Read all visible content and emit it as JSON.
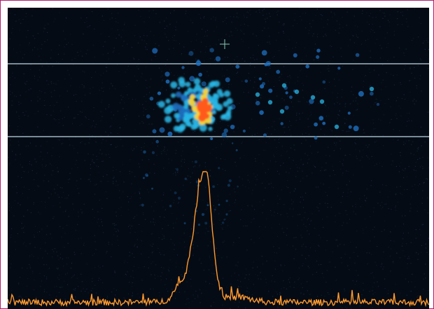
{
  "image": {
    "kind": "scientific detector image",
    "description_colors": {
      "background": "#050b14",
      "noise": "#1a3357",
      "guide_line": "#b9d7e3",
      "crosshair": "#88c7b8",
      "spot_low": "#1d6fbf",
      "spot_mid": "#29b7e6",
      "spot_high": "#f2d23a",
      "spot_peak": "#ff5a1f",
      "profile_line": "#ff9a2e"
    }
  }
}
